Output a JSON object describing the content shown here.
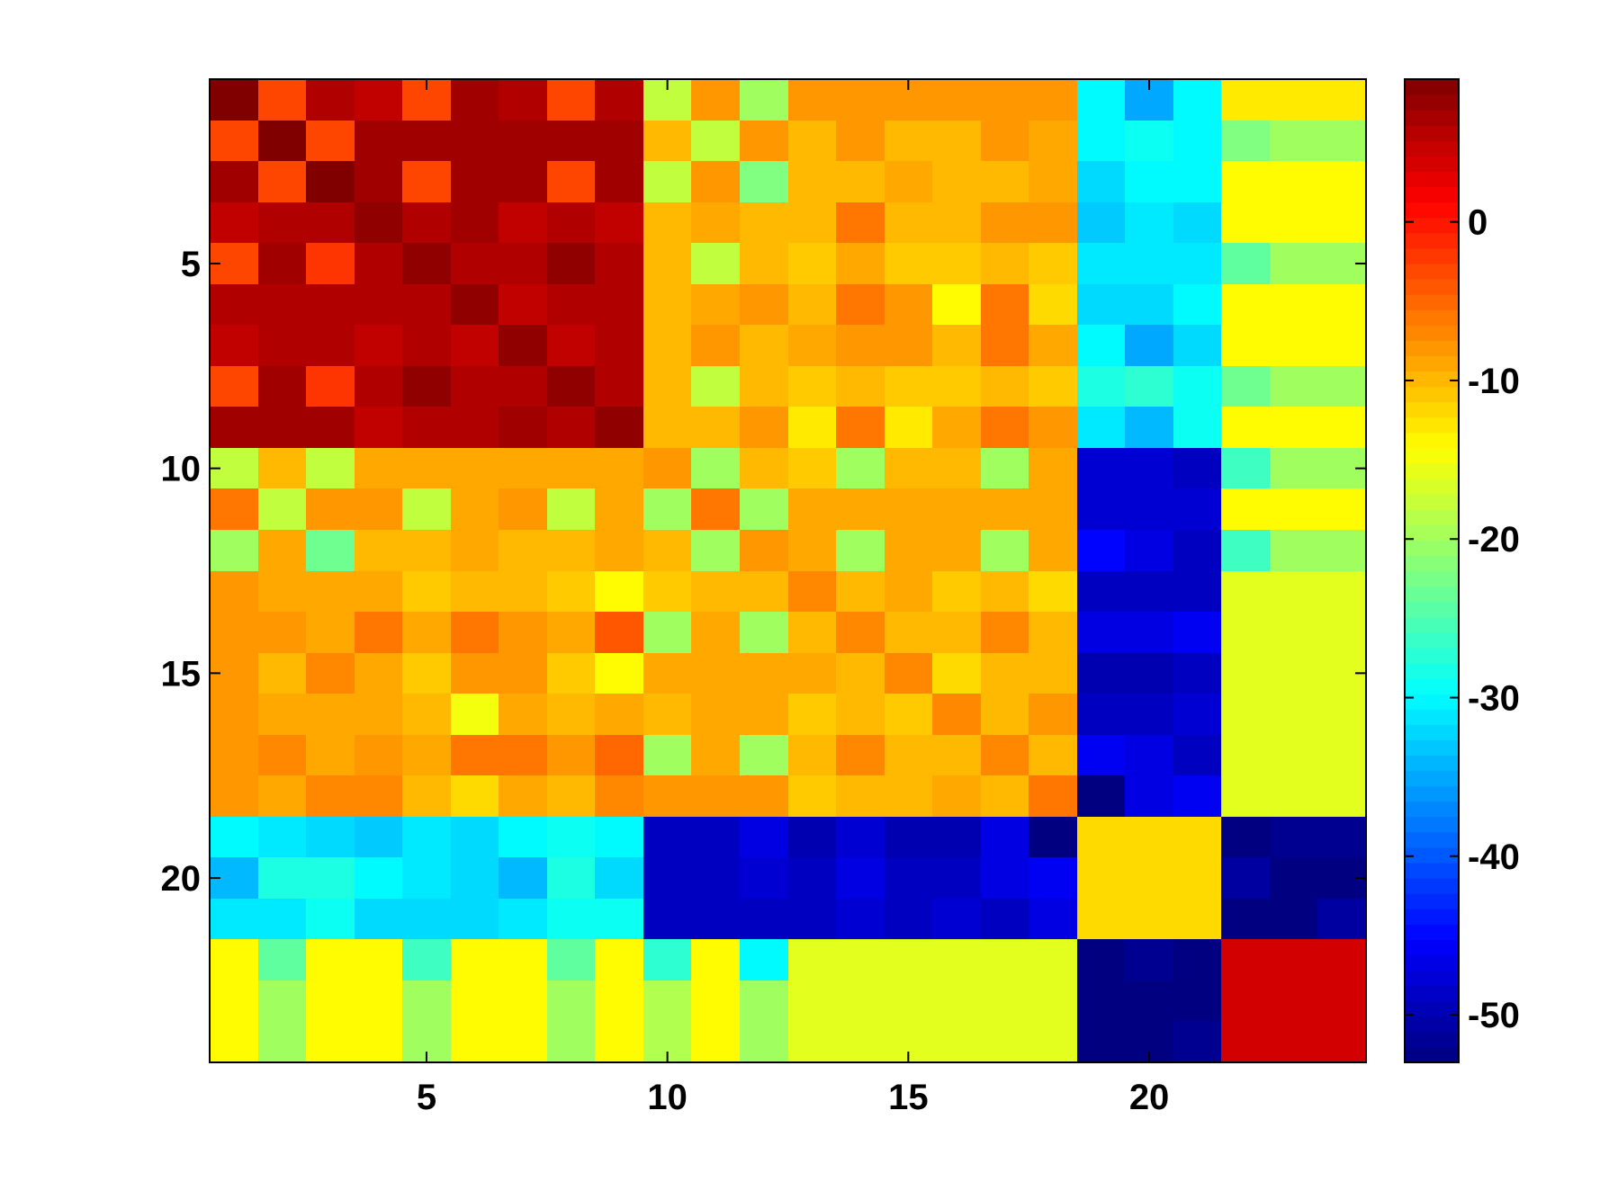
{
  "chart_data": {
    "type": "heatmap",
    "title": "",
    "xlabel": "",
    "ylabel": "",
    "colormap": "jet",
    "n_rows": 24,
    "n_cols": 24,
    "x_ticks": [
      5,
      10,
      15,
      20
    ],
    "y_ticks": [
      5,
      10,
      15,
      20
    ],
    "x_tick_labels": [
      "5",
      "10",
      "15",
      "20"
    ],
    "y_tick_labels": [
      "5",
      "10",
      "15",
      "20"
    ],
    "colorbar": {
      "range": [
        -53,
        9
      ],
      "ticks": [
        0,
        -10,
        -20,
        -30,
        -40,
        -50
      ],
      "tick_labels": [
        "0",
        "-10",
        "-20",
        "-30",
        "-40",
        "-50"
      ],
      "levels": 64
    },
    "matrix": [
      [
        9,
        -3,
        6,
        5,
        -3,
        7,
        6,
        -3,
        6,
        -18,
        -8,
        -20,
        -8,
        -8,
        -8,
        -8,
        -8,
        -8,
        -30,
        -35,
        -30,
        -13,
        -13,
        -13
      ],
      [
        -3,
        9,
        -3,
        7,
        7,
        7,
        7,
        7,
        7,
        -10,
        -18,
        -8,
        -10,
        -8,
        -10,
        -10,
        -8,
        -9,
        -30,
        -29,
        -30,
        -22,
        -20,
        -20
      ],
      [
        7,
        -3,
        9,
        7,
        -3,
        7,
        7,
        -3,
        7,
        -18,
        -8,
        -22,
        -10,
        -10,
        -9,
        -10,
        -10,
        -9,
        -32,
        -30,
        -30,
        -14,
        -14,
        -14
      ],
      [
        5,
        6,
        6,
        8,
        6,
        7,
        5,
        6,
        5,
        -10,
        -9,
        -10,
        -10,
        -6,
        -10,
        -10,
        -8,
        -8,
        -33,
        -31,
        -32,
        -14,
        -14,
        -14
      ],
      [
        -3,
        7,
        -2,
        6,
        8,
        6,
        6,
        8,
        6,
        -10,
        -18,
        -10,
        -11,
        -9,
        -11,
        -11,
        -10,
        -11,
        -31,
        -31,
        -31,
        -24,
        -20,
        -20
      ],
      [
        6,
        6,
        6,
        6,
        6,
        8,
        5,
        6,
        6,
        -10,
        -9,
        -8,
        -10,
        -6,
        -8,
        -14,
        -6,
        -12,
        -32,
        -32,
        -30,
        -14,
        -14,
        -14
      ],
      [
        5,
        6,
        6,
        5,
        6,
        5,
        8,
        5,
        6,
        -10,
        -8,
        -10,
        -9,
        -8,
        -8,
        -10,
        -6,
        -9,
        -30,
        -35,
        -32,
        -14,
        -14,
        -14
      ],
      [
        -3,
        7,
        -2,
        6,
        8,
        6,
        6,
        8,
        6,
        -10,
        -18,
        -10,
        -11,
        -10,
        -11,
        -11,
        -10,
        -11,
        -28,
        -27,
        -29,
        -23,
        -20,
        -20
      ],
      [
        7,
        7,
        7,
        5,
        6,
        6,
        7,
        6,
        8,
        -10,
        -10,
        -8,
        -13,
        -6,
        -13,
        -9,
        -6,
        -8,
        -31,
        -34,
        -29,
        -14,
        -14,
        -14
      ],
      [
        -18,
        -10,
        -18,
        -9,
        -9,
        -9,
        -9,
        -9,
        -9,
        -8,
        -20,
        -10,
        -11,
        -20,
        -10,
        -10,
        -20,
        -9,
        -48,
        -48,
        -49,
        -26,
        -20,
        -20
      ],
      [
        -6,
        -18,
        -8,
        -8,
        -18,
        -9,
        -8,
        -18,
        -9,
        -20,
        -6,
        -20,
        -9,
        -9,
        -9,
        -9,
        -9,
        -9,
        -48,
        -48,
        -48,
        -14,
        -14,
        -14
      ],
      [
        -20,
        -9,
        -23,
        -10,
        -10,
        -9,
        -10,
        -10,
        -9,
        -10,
        -20,
        -8,
        -9,
        -20,
        -9,
        -9,
        -20,
        -9,
        -45,
        -47,
        -49,
        -26,
        -20,
        -20
      ],
      [
        -8,
        -9,
        -9,
        -9,
        -11,
        -10,
        -10,
        -11,
        -14,
        -11,
        -10,
        -10,
        -7,
        -10,
        -9,
        -11,
        -10,
        -12,
        -49,
        -49,
        -49,
        -16,
        -16,
        -16
      ],
      [
        -8,
        -8,
        -9,
        -6,
        -9,
        -6,
        -8,
        -9,
        -4,
        -20,
        -9,
        -20,
        -10,
        -7,
        -10,
        -10,
        -7,
        -10,
        -47,
        -47,
        -46,
        -16,
        -16,
        -16
      ],
      [
        -8,
        -10,
        -7,
        -9,
        -11,
        -8,
        -8,
        -11,
        -14,
        -9,
        -9,
        -9,
        -9,
        -10,
        -7,
        -12,
        -10,
        -10,
        -50,
        -50,
        -49,
        -16,
        -16,
        -16
      ],
      [
        -8,
        -9,
        -9,
        -9,
        -10,
        -15,
        -9,
        -10,
        -9,
        -10,
        -9,
        -9,
        -11,
        -10,
        -11,
        -7,
        -10,
        -8,
        -49,
        -49,
        -48,
        -16,
        -16,
        -16
      ],
      [
        -8,
        -7,
        -9,
        -8,
        -9,
        -6,
        -6,
        -8,
        -5,
        -20,
        -9,
        -20,
        -10,
        -7,
        -10,
        -10,
        -7,
        -10,
        -46,
        -47,
        -49,
        -16,
        -16,
        -16
      ],
      [
        -8,
        -9,
        -7,
        -7,
        -10,
        -12,
        -9,
        -10,
        -7,
        -8,
        -8,
        -8,
        -11,
        -10,
        -10,
        -9,
        -10,
        -6,
        -53,
        -47,
        -46,
        -16,
        -16,
        -16
      ],
      [
        -30,
        -31,
        -32,
        -33,
        -31,
        -32,
        -30,
        -29,
        -30,
        -49,
        -49,
        -47,
        -50,
        -48,
        -50,
        -50,
        -47,
        -53,
        -12,
        -12,
        -12,
        -53,
        -52,
        -52
      ],
      [
        -34,
        -28,
        -28,
        -30,
        -31,
        -32,
        -34,
        -28,
        -32,
        -49,
        -49,
        -48,
        -49,
        -47,
        -49,
        -49,
        -47,
        -46,
        -12,
        -12,
        -12,
        -51,
        -53,
        -53
      ],
      [
        -31,
        -31,
        -29,
        -32,
        -32,
        -32,
        -31,
        -29,
        -29,
        -49,
        -49,
        -49,
        -49,
        -48,
        -49,
        -48,
        -49,
        -47,
        -12,
        -12,
        -12,
        -53,
        -53,
        -51
      ],
      [
        -14,
        -24,
        -14,
        -14,
        -26,
        -14,
        -14,
        -24,
        -14,
        -27,
        -14,
        -30,
        -16,
        -16,
        -16,
        -16,
        -16,
        -16,
        -53,
        -52,
        -53,
        4,
        4,
        4
      ],
      [
        -14,
        -20,
        -14,
        -14,
        -20,
        -14,
        -14,
        -20,
        -14,
        -19,
        -14,
        -20,
        -16,
        -16,
        -16,
        -16,
        -16,
        -16,
        -53,
        -53,
        -53,
        4,
        4,
        4
      ],
      [
        -14,
        -20,
        -14,
        -14,
        -20,
        -14,
        -14,
        -20,
        -14,
        -19,
        -14,
        -20,
        -16,
        -16,
        -16,
        -16,
        -16,
        -16,
        -53,
        -53,
        -52,
        4,
        4,
        4
      ]
    ]
  }
}
